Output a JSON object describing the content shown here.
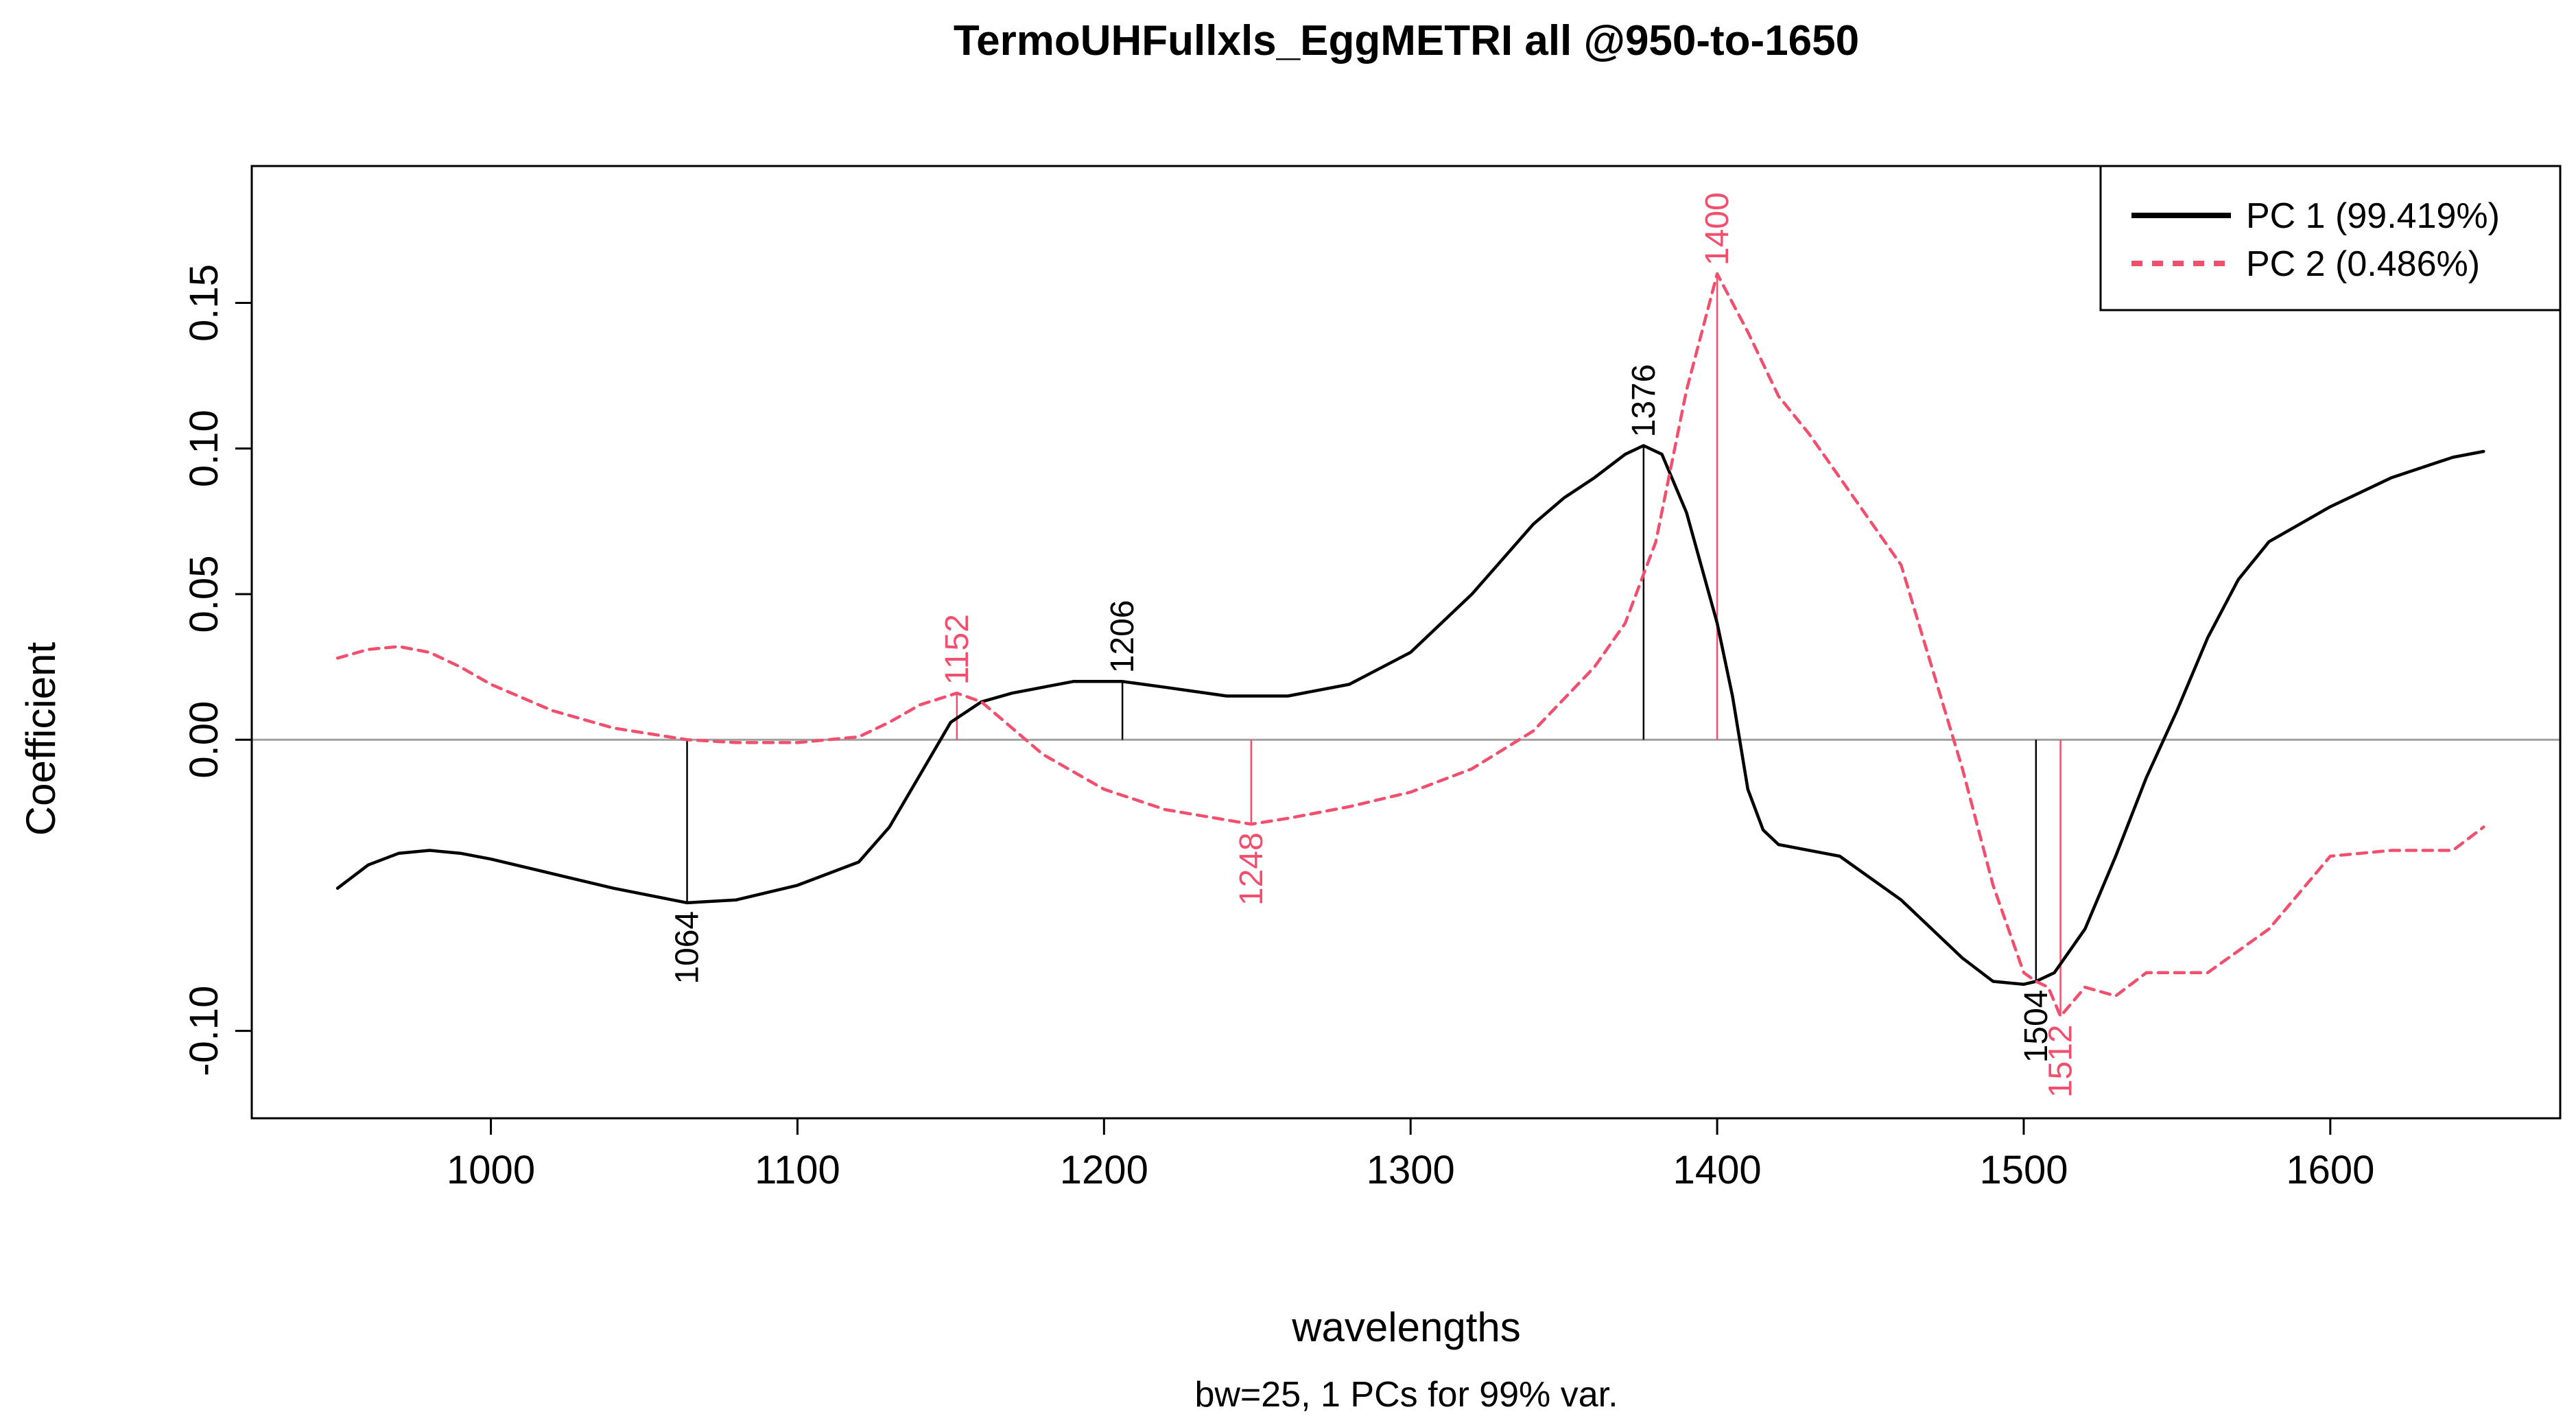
{
  "chart_data": {
    "type": "line",
    "title": "TermoUHFullxls_EggMETRI  all @950-to-1650",
    "subtitle": "bw=25, 1 PCs for 99% var.",
    "xlabel": "wavelengths",
    "ylabel": "Coefficient",
    "xlim": [
      922,
      1675
    ],
    "ylim": [
      -0.13,
      0.197
    ],
    "x_ticks": [
      1000,
      1100,
      1200,
      1300,
      1400,
      1500,
      1600
    ],
    "x_tick_labels": [
      "1000",
      "1100",
      "1200",
      "1300",
      "1400",
      "1500",
      "1600"
    ],
    "y_ticks": [
      -0.1,
      0,
      0.05,
      0.1,
      0.15
    ],
    "y_tick_labels": [
      "-0.10",
      "0.00",
      "0.05",
      "0.10",
      "0.15"
    ],
    "zero_line": true,
    "legend_position": "top-right",
    "series": [
      {
        "name": "PC 1 (99.419%)",
        "color": "#000000",
        "style": "solid",
        "x": [
          950,
          960,
          970,
          980,
          990,
          1000,
          1020,
          1040,
          1064,
          1080,
          1100,
          1120,
          1130,
          1140,
          1150,
          1160,
          1170,
          1180,
          1190,
          1206,
          1220,
          1240,
          1260,
          1280,
          1300,
          1320,
          1340,
          1350,
          1360,
          1370,
          1376,
          1382,
          1390,
          1400,
          1405,
          1410,
          1415,
          1420,
          1440,
          1460,
          1480,
          1490,
          1500,
          1504,
          1510,
          1520,
          1530,
          1540,
          1550,
          1560,
          1570,
          1580,
          1600,
          1620,
          1640,
          1650
        ],
        "y": [
          -0.051,
          -0.043,
          -0.039,
          -0.038,
          -0.039,
          -0.041,
          -0.046,
          -0.051,
          -0.056,
          -0.055,
          -0.05,
          -0.042,
          -0.03,
          -0.012,
          0.006,
          0.013,
          0.016,
          0.018,
          0.02,
          0.02,
          0.018,
          0.015,
          0.015,
          0.019,
          0.03,
          0.05,
          0.074,
          0.083,
          0.09,
          0.098,
          0.101,
          0.098,
          0.078,
          0.04,
          0.015,
          -0.017,
          -0.031,
          -0.036,
          -0.04,
          -0.055,
          -0.075,
          -0.083,
          -0.084,
          -0.083,
          -0.08,
          -0.065,
          -0.04,
          -0.013,
          0.01,
          0.035,
          0.055,
          0.068,
          0.08,
          0.09,
          0.097,
          0.099
        ]
      },
      {
        "name": "PC 2 (0.486%)",
        "color": "#F0506E",
        "style": "dashed",
        "x": [
          950,
          960,
          970,
          980,
          990,
          1000,
          1020,
          1040,
          1064,
          1080,
          1100,
          1120,
          1130,
          1140,
          1152,
          1160,
          1170,
          1180,
          1200,
          1220,
          1248,
          1260,
          1280,
          1300,
          1320,
          1340,
          1360,
          1370,
          1380,
          1390,
          1400,
          1410,
          1420,
          1430,
          1440,
          1460,
          1470,
          1480,
          1490,
          1500,
          1504,
          1508,
          1512,
          1520,
          1530,
          1540,
          1550,
          1560,
          1580,
          1600,
          1620,
          1640,
          1650
        ],
        "y": [
          0.028,
          0.031,
          0.032,
          0.03,
          0.025,
          0.019,
          0.01,
          0.004,
          0.0,
          -0.001,
          -0.001,
          0.001,
          0.006,
          0.012,
          0.016,
          0.013,
          0.004,
          -0.005,
          -0.017,
          -0.024,
          -0.029,
          -0.027,
          -0.023,
          -0.018,
          -0.01,
          0.003,
          0.025,
          0.04,
          0.068,
          0.12,
          0.16,
          0.14,
          0.118,
          0.105,
          0.09,
          0.06,
          0.025,
          -0.01,
          -0.05,
          -0.08,
          -0.083,
          -0.085,
          -0.095,
          -0.085,
          -0.088,
          -0.08,
          -0.08,
          -0.08,
          -0.065,
          -0.04,
          -0.038,
          -0.038,
          -0.03
        ]
      }
    ],
    "peak_markers": [
      {
        "x": 1064,
        "y": -0.056,
        "label": "1064",
        "series": 0,
        "label_side": "below"
      },
      {
        "x": 1206,
        "y": 0.02,
        "label": "1206",
        "series": 0,
        "label_side": "above"
      },
      {
        "x": 1376,
        "y": 0.101,
        "label": "1376",
        "series": 0,
        "label_side": "above"
      },
      {
        "x": 1504,
        "y": -0.083,
        "label": "1504",
        "series": 0,
        "label_side": "below"
      },
      {
        "x": 1152,
        "y": 0.016,
        "label": "1152",
        "series": 1,
        "label_side": "above"
      },
      {
        "x": 1248,
        "y": -0.029,
        "label": "1248",
        "series": 1,
        "label_side": "below"
      },
      {
        "x": 1400,
        "y": 0.16,
        "label": "1400",
        "series": 1,
        "label_side": "above"
      },
      {
        "x": 1512,
        "y": -0.095,
        "label": "1512",
        "series": 1,
        "label_side": "below"
      }
    ]
  }
}
